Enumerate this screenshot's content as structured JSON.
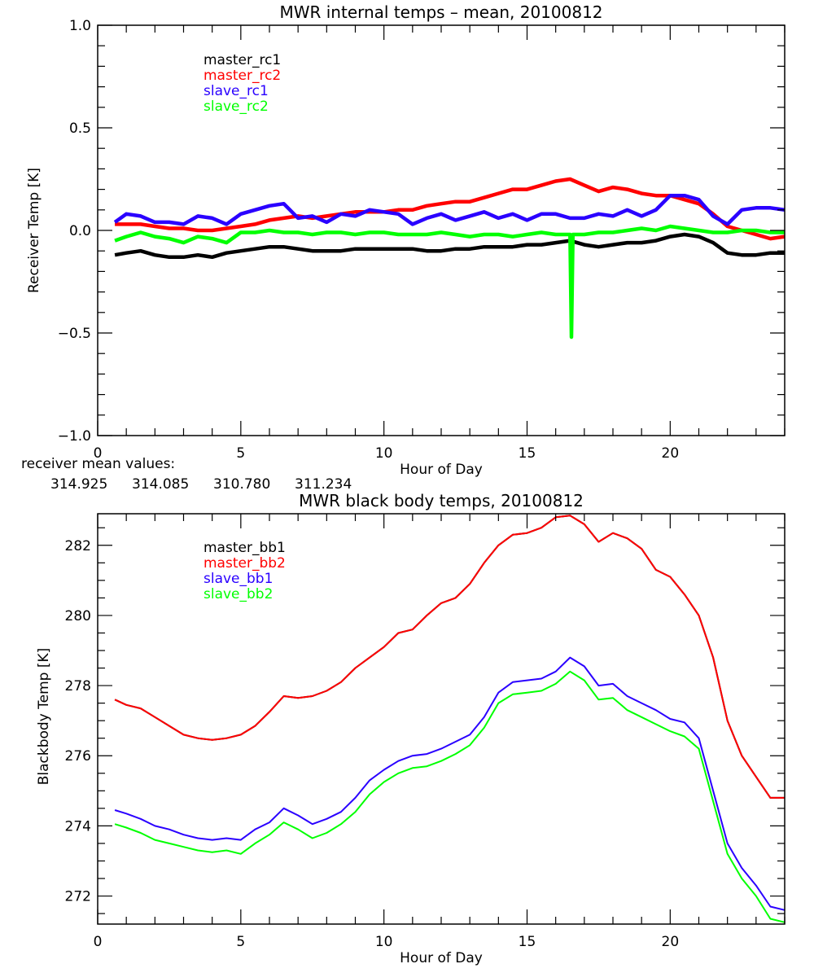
{
  "chart_data": [
    {
      "type": "line",
      "title": "MWR internal temps – mean, 20100812",
      "xlabel": "Hour of Day",
      "ylabel": "Receiver Temp [K]",
      "xlim": [
        0,
        24
      ],
      "ylim": [
        -1.0,
        1.0
      ],
      "xticks": [
        0,
        5,
        10,
        15,
        20
      ],
      "xtick_labels": [
        "0",
        "5",
        "10",
        "15",
        "20"
      ],
      "x_minor_step": 1,
      "yticks": [
        -1.0,
        -0.5,
        0.0,
        0.5,
        1.0
      ],
      "ytick_labels": [
        "−1.0",
        "−0.5",
        "0.0",
        "0.5",
        "1.0"
      ],
      "y_minor_step": 0.1,
      "grid": false,
      "legend_position": "top-left",
      "series": [
        {
          "name": "master_rc1",
          "color": "#000000",
          "x": [
            0.6,
            1.0,
            1.5,
            2.0,
            2.5,
            3.0,
            3.5,
            4.0,
            4.5,
            5.0,
            5.5,
            6.0,
            6.5,
            7.0,
            7.5,
            8.0,
            8.5,
            9.0,
            9.5,
            10.0,
            10.5,
            11.0,
            11.5,
            12.0,
            12.5,
            13.0,
            13.5,
            14.0,
            14.5,
            15.0,
            15.5,
            16.0,
            16.5,
            17.0,
            17.5,
            18.0,
            18.5,
            19.0,
            19.5,
            20.0,
            20.5,
            21.0,
            21.5,
            22.0,
            22.5,
            23.0,
            23.5,
            24.0
          ],
          "y": [
            -0.12,
            -0.11,
            -0.1,
            -0.12,
            -0.13,
            -0.13,
            -0.12,
            -0.13,
            -0.11,
            -0.1,
            -0.09,
            -0.08,
            -0.08,
            -0.09,
            -0.1,
            -0.1,
            -0.1,
            -0.09,
            -0.09,
            -0.09,
            -0.09,
            -0.09,
            -0.1,
            -0.1,
            -0.09,
            -0.09,
            -0.08,
            -0.08,
            -0.08,
            -0.07,
            -0.07,
            -0.06,
            -0.05,
            -0.07,
            -0.08,
            -0.07,
            -0.06,
            -0.06,
            -0.05,
            -0.03,
            -0.02,
            -0.03,
            -0.06,
            -0.11,
            -0.12,
            -0.12,
            -0.11,
            -0.11
          ]
        },
        {
          "name": "master_rc2",
          "color": "#ff0000",
          "x": [
            0.6,
            1.0,
            1.5,
            2.0,
            2.5,
            3.0,
            3.5,
            4.0,
            4.5,
            5.0,
            5.5,
            6.0,
            6.5,
            7.0,
            7.5,
            8.0,
            8.5,
            9.0,
            9.5,
            10.0,
            10.5,
            11.0,
            11.5,
            12.0,
            12.5,
            13.0,
            13.5,
            14.0,
            14.5,
            15.0,
            15.5,
            16.0,
            16.5,
            17.0,
            17.5,
            18.0,
            18.5,
            19.0,
            19.5,
            20.0,
            20.5,
            21.0,
            21.5,
            22.0,
            22.5,
            23.0,
            23.5,
            24.0
          ],
          "y": [
            0.03,
            0.03,
            0.03,
            0.02,
            0.01,
            0.01,
            0.0,
            0.0,
            0.01,
            0.02,
            0.03,
            0.05,
            0.06,
            0.07,
            0.06,
            0.07,
            0.08,
            0.09,
            0.09,
            0.09,
            0.1,
            0.1,
            0.12,
            0.13,
            0.14,
            0.14,
            0.16,
            0.18,
            0.2,
            0.2,
            0.22,
            0.24,
            0.25,
            0.22,
            0.19,
            0.21,
            0.2,
            0.18,
            0.17,
            0.17,
            0.15,
            0.13,
            0.08,
            0.02,
            0.0,
            -0.02,
            -0.04,
            -0.03
          ]
        },
        {
          "name": "slave_rc1",
          "color": "#2a00ff",
          "x": [
            0.6,
            1.0,
            1.5,
            2.0,
            2.5,
            3.0,
            3.5,
            4.0,
            4.5,
            5.0,
            5.5,
            6.0,
            6.5,
            7.0,
            7.5,
            8.0,
            8.5,
            9.0,
            9.5,
            10.0,
            10.5,
            11.0,
            11.5,
            12.0,
            12.5,
            13.0,
            13.5,
            14.0,
            14.5,
            15.0,
            15.5,
            16.0,
            16.5,
            17.0,
            17.5,
            18.0,
            18.5,
            19.0,
            19.5,
            20.0,
            20.5,
            21.0,
            21.5,
            22.0,
            22.5,
            23.0,
            23.5,
            24.0
          ],
          "y": [
            0.04,
            0.08,
            0.07,
            0.04,
            0.04,
            0.03,
            0.07,
            0.06,
            0.03,
            0.08,
            0.1,
            0.12,
            0.13,
            0.06,
            0.07,
            0.04,
            0.08,
            0.07,
            0.1,
            0.09,
            0.08,
            0.03,
            0.06,
            0.08,
            0.05,
            0.07,
            0.09,
            0.06,
            0.08,
            0.05,
            0.08,
            0.08,
            0.06,
            0.06,
            0.08,
            0.07,
            0.1,
            0.07,
            0.1,
            0.17,
            0.17,
            0.15,
            0.07,
            0.03,
            0.1,
            0.11,
            0.11,
            0.1
          ]
        },
        {
          "name": "slave_rc2",
          "color": "#00ff00",
          "x": [
            0.6,
            1.0,
            1.5,
            2.0,
            2.5,
            3.0,
            3.5,
            4.0,
            4.5,
            5.0,
            5.5,
            6.0,
            6.5,
            7.0,
            7.5,
            8.0,
            8.5,
            9.0,
            9.5,
            10.0,
            10.5,
            11.0,
            11.5,
            12.0,
            12.5,
            13.0,
            13.5,
            14.0,
            14.5,
            15.0,
            15.5,
            16.0,
            16.5,
            16.55,
            16.6,
            17.0,
            17.5,
            18.0,
            18.5,
            19.0,
            19.5,
            20.0,
            20.5,
            21.0,
            21.5,
            22.0,
            22.5,
            23.0,
            23.5,
            24.0
          ],
          "y": [
            -0.05,
            -0.03,
            -0.01,
            -0.03,
            -0.04,
            -0.06,
            -0.03,
            -0.04,
            -0.06,
            -0.01,
            -0.01,
            0.0,
            -0.01,
            -0.01,
            -0.02,
            -0.01,
            -0.01,
            -0.02,
            -0.01,
            -0.01,
            -0.02,
            -0.02,
            -0.02,
            -0.01,
            -0.02,
            -0.03,
            -0.02,
            -0.02,
            -0.03,
            -0.02,
            -0.01,
            -0.02,
            -0.02,
            -0.52,
            -0.02,
            -0.02,
            -0.01,
            -0.01,
            0.0,
            0.01,
            0.0,
            0.02,
            0.01,
            0.0,
            -0.01,
            -0.01,
            0.0,
            0.0,
            -0.01,
            -0.01
          ]
        }
      ]
    },
    {
      "type": "line",
      "title": "MWR black body temps, 20100812",
      "xlabel": "Hour of Day",
      "ylabel": "Blackbody Temp [K]",
      "xlim": [
        0,
        24
      ],
      "ylim": [
        271.2,
        282.9
      ],
      "xticks": [
        0,
        5,
        10,
        15,
        20
      ],
      "xtick_labels": [
        "0",
        "5",
        "10",
        "15",
        "20"
      ],
      "x_minor_step": 1,
      "yticks": [
        272,
        274,
        276,
        278,
        280,
        282
      ],
      "ytick_labels": [
        "272",
        "274",
        "276",
        "278",
        "280",
        "282"
      ],
      "y_minor_step": 0.5,
      "grid": false,
      "legend_position": "top-left",
      "series": [
        {
          "name": "master_bb1",
          "color": "#000000",
          "x": [
            0.6,
            1.0,
            1.5,
            2.0,
            2.5,
            3.0,
            3.5,
            4.0,
            4.5,
            5.0,
            5.5,
            6.0,
            6.5,
            7.0,
            7.5,
            8.0,
            8.5,
            9.0,
            9.5,
            10.0,
            10.5,
            11.0,
            11.5,
            12.0,
            12.5,
            13.0,
            13.5,
            14.0,
            14.5,
            15.0,
            15.5,
            16.0,
            16.5,
            17.0,
            17.5,
            18.0,
            18.5,
            19.0,
            19.5,
            20.0,
            20.5,
            21.0,
            21.5,
            22.0,
            22.5,
            23.0,
            23.5,
            24.0
          ],
          "y": [
            277.6,
            277.45,
            277.35,
            277.1,
            276.85,
            276.6,
            276.5,
            276.45,
            276.5,
            276.6,
            276.85,
            277.25,
            277.7,
            277.65,
            277.7,
            277.85,
            278.1,
            278.5,
            278.8,
            279.1,
            279.5,
            279.6,
            280.0,
            280.35,
            280.5,
            280.9,
            281.5,
            282.0,
            282.3,
            282.35,
            282.5,
            282.8,
            282.85,
            282.6,
            282.1,
            282.35,
            282.2,
            281.9,
            281.3,
            281.1,
            280.6,
            280.0,
            278.8,
            277.0,
            276.0,
            275.4,
            274.8,
            274.8
          ]
        },
        {
          "name": "master_bb2",
          "color": "#ff0000",
          "x": [
            0.6,
            1.0,
            1.5,
            2.0,
            2.5,
            3.0,
            3.5,
            4.0,
            4.5,
            5.0,
            5.5,
            6.0,
            6.5,
            7.0,
            7.5,
            8.0,
            8.5,
            9.0,
            9.5,
            10.0,
            10.5,
            11.0,
            11.5,
            12.0,
            12.5,
            13.0,
            13.5,
            14.0,
            14.5,
            15.0,
            15.5,
            16.0,
            16.5,
            17.0,
            17.5,
            18.0,
            18.5,
            19.0,
            19.5,
            20.0,
            20.5,
            21.0,
            21.5,
            22.0,
            22.5,
            23.0,
            23.5,
            24.0
          ],
          "y": [
            277.6,
            277.45,
            277.35,
            277.1,
            276.85,
            276.6,
            276.5,
            276.45,
            276.5,
            276.6,
            276.85,
            277.25,
            277.7,
            277.65,
            277.7,
            277.85,
            278.1,
            278.5,
            278.8,
            279.1,
            279.5,
            279.6,
            280.0,
            280.35,
            280.5,
            280.9,
            281.5,
            282.0,
            282.3,
            282.35,
            282.5,
            282.8,
            282.85,
            282.6,
            282.1,
            282.35,
            282.2,
            281.9,
            281.3,
            281.1,
            280.6,
            280.0,
            278.8,
            277.0,
            276.0,
            275.4,
            274.8,
            274.8
          ]
        },
        {
          "name": "slave_bb1",
          "color": "#2a00ff",
          "x": [
            0.6,
            1.0,
            1.5,
            2.0,
            2.5,
            3.0,
            3.5,
            4.0,
            4.5,
            5.0,
            5.5,
            6.0,
            6.5,
            7.0,
            7.5,
            8.0,
            8.5,
            9.0,
            9.5,
            10.0,
            10.5,
            11.0,
            11.5,
            12.0,
            12.5,
            13.0,
            13.5,
            14.0,
            14.5,
            15.0,
            15.5,
            16.0,
            16.5,
            17.0,
            17.5,
            18.0,
            18.5,
            19.0,
            19.5,
            20.0,
            20.5,
            21.0,
            21.5,
            22.0,
            22.5,
            23.0,
            23.5,
            24.0
          ],
          "y": [
            274.45,
            274.35,
            274.2,
            274.0,
            273.9,
            273.75,
            273.65,
            273.6,
            273.65,
            273.6,
            273.9,
            274.1,
            274.5,
            274.3,
            274.05,
            274.2,
            274.4,
            274.8,
            275.3,
            275.6,
            275.85,
            276.0,
            276.05,
            276.2,
            276.4,
            276.6,
            277.1,
            277.8,
            278.1,
            278.15,
            278.2,
            278.4,
            278.8,
            278.55,
            278.0,
            278.05,
            277.7,
            277.5,
            277.3,
            277.05,
            276.95,
            276.5,
            275.0,
            273.5,
            272.8,
            272.3,
            271.7,
            271.6
          ]
        },
        {
          "name": "slave_bb2",
          "color": "#00ff00",
          "x": [
            0.6,
            1.0,
            1.5,
            2.0,
            2.5,
            3.0,
            3.5,
            4.0,
            4.5,
            5.0,
            5.5,
            6.0,
            6.5,
            7.0,
            7.5,
            8.0,
            8.5,
            9.0,
            9.5,
            10.0,
            10.5,
            11.0,
            11.5,
            12.0,
            12.5,
            13.0,
            13.5,
            14.0,
            14.5,
            15.0,
            15.5,
            16.0,
            16.5,
            17.0,
            17.5,
            18.0,
            18.5,
            19.0,
            19.5,
            20.0,
            20.5,
            21.0,
            21.5,
            22.0,
            22.5,
            23.0,
            23.5,
            24.0
          ],
          "y": [
            274.05,
            273.95,
            273.8,
            273.6,
            273.5,
            273.4,
            273.3,
            273.25,
            273.3,
            273.2,
            273.5,
            273.75,
            274.1,
            273.9,
            273.65,
            273.8,
            274.05,
            274.4,
            274.9,
            275.25,
            275.5,
            275.65,
            275.7,
            275.85,
            276.05,
            276.3,
            276.8,
            277.5,
            277.75,
            277.8,
            277.85,
            278.05,
            278.4,
            278.15,
            277.6,
            277.65,
            277.3,
            277.1,
            276.9,
            276.7,
            276.55,
            276.2,
            274.7,
            273.2,
            272.5,
            272.0,
            271.35,
            271.25
          ]
        }
      ]
    }
  ],
  "receiver_means": {
    "label": "receiver mean values:",
    "values": [
      {
        "value": "314.925",
        "color": "#000000"
      },
      {
        "value": "314.085",
        "color": "#ff0000"
      },
      {
        "value": "310.780",
        "color": "#2a00ff"
      },
      {
        "value": "311.234",
        "color": "#00ff00"
      }
    ]
  }
}
